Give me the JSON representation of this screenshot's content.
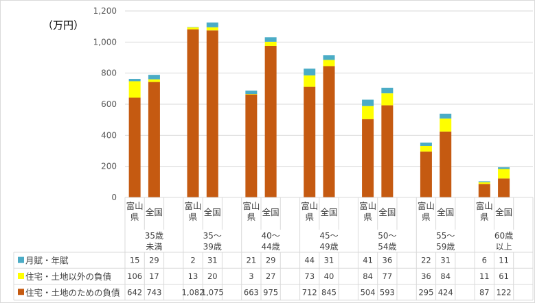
{
  "chart_data": {
    "type": "bar",
    "stacked": true,
    "unit_label": "（万円）",
    "ylim": [
      0,
      1200
    ],
    "yticks": [
      0,
      200,
      400,
      600,
      800,
      1000,
      1200
    ],
    "ytick_labels": [
      "0",
      "200",
      "400",
      "600",
      "800",
      "1,000",
      "1,200"
    ],
    "grid": true,
    "groups": [
      {
        "label": [
          "35歳",
          "未満"
        ]
      },
      {
        "label": [
          "35～",
          "39歳"
        ]
      },
      {
        "label": [
          "40～",
          "44歳"
        ]
      },
      {
        "label": [
          "45～",
          "49歳"
        ]
      },
      {
        "label": [
          "50～",
          "54歳"
        ]
      },
      {
        "label": [
          "55～",
          "59歳"
        ]
      },
      {
        "label": [
          "60歳",
          "以上"
        ]
      }
    ],
    "subcategories": [
      [
        "富山",
        "県"
      ],
      [
        "全国"
      ]
    ],
    "series": [
      {
        "name": "住宅・土地のための負債",
        "color": "#c55a11",
        "values": [
          642,
          743,
          1082,
          1075,
          663,
          975,
          712,
          845,
          504,
          593,
          295,
          424,
          87,
          122
        ],
        "labels": [
          "642",
          "743",
          "1,082",
          "1,075",
          "663",
          "975",
          "712",
          "845",
          "504",
          "593",
          "295",
          "424",
          "87",
          "122"
        ]
      },
      {
        "name": "住宅・土地以外の負債",
        "color": "#ffff00",
        "values": [
          106,
          17,
          13,
          20,
          3,
          27,
          73,
          40,
          84,
          77,
          36,
          84,
          11,
          61
        ],
        "labels": [
          "106",
          "17",
          "13",
          "20",
          "3",
          "27",
          "73",
          "40",
          "84",
          "77",
          "36",
          "84",
          "11",
          "61"
        ]
      },
      {
        "name": "月賦・年賦",
        "color": "#4bacc6",
        "values": [
          15,
          29,
          2,
          31,
          21,
          29,
          44,
          31,
          41,
          36,
          22,
          31,
          6,
          11
        ],
        "labels": [
          "15",
          "29",
          "2",
          "31",
          "21",
          "29",
          "44",
          "31",
          "41",
          "36",
          "22",
          "31",
          "6",
          "11"
        ]
      }
    ],
    "table_row_order": [
      2,
      1,
      0
    ],
    "legend": "data-table"
  }
}
